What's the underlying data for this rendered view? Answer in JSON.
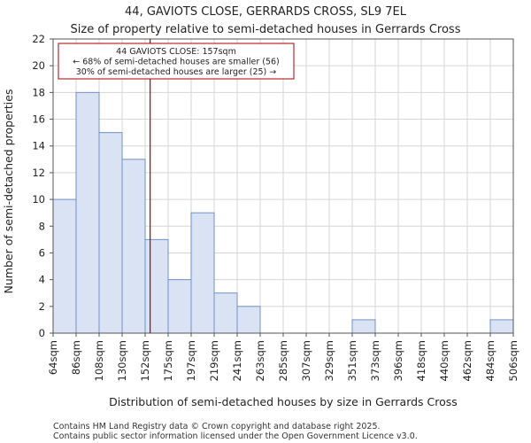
{
  "chart_data": {
    "type": "bar",
    "title": "44, GAVIOTS CLOSE, GERRARDS CROSS, SL9 7EL",
    "subtitle": "Size of property relative to semi-detached houses in Gerrards Cross",
    "xlabel": "Distribution of semi-detached houses by size in Gerrards Cross",
    "ylabel": "Number of semi-detached properties",
    "bin_edges_sqm": [
      64,
      86,
      108,
      130,
      152,
      175,
      197,
      219,
      241,
      263,
      285,
      307,
      329,
      351,
      373,
      396,
      418,
      440,
      462,
      484,
      506
    ],
    "tick_labels": [
      "64sqm",
      "86sqm",
      "108sqm",
      "130sqm",
      "152sqm",
      "175sqm",
      "197sqm",
      "219sqm",
      "241sqm",
      "263sqm",
      "285sqm",
      "307sqm",
      "329sqm",
      "351sqm",
      "373sqm",
      "396sqm",
      "418sqm",
      "440sqm",
      "462sqm",
      "484sqm",
      "506sqm"
    ],
    "values": [
      10,
      18,
      15,
      13,
      7,
      4,
      9,
      3,
      2,
      0,
      0,
      0,
      0,
      1,
      0,
      0,
      0,
      0,
      0,
      1
    ],
    "ylim": [
      0,
      22
    ],
    "yticks": [
      0,
      2,
      4,
      6,
      8,
      10,
      12,
      14,
      16,
      18,
      20,
      22
    ],
    "bar_fill": "#dae3f3",
    "bar_stroke": "#7090c8",
    "marker": {
      "value_sqm": 157,
      "color": "#aa0000",
      "annotation_lines": [
        "44 GAVIOTS CLOSE: 157sqm",
        "← 68% of semi-detached houses are smaller (56)",
        "30% of semi-detached houses are larger (25) →"
      ]
    }
  },
  "footer": [
    "Contains HM Land Registry data © Crown copyright and database right 2025.",
    "Contains public sector information licensed under the Open Government Licence v3.0."
  ]
}
